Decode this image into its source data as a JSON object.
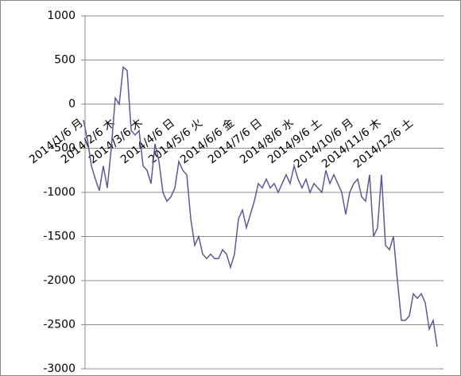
{
  "chart_data": {
    "type": "line",
    "color": "#5a5a96",
    "grid": true,
    "ylim": [
      -3000,
      1000
    ],
    "yticks": [
      1000,
      500,
      0,
      -500,
      -1000,
      -1500,
      -2000,
      -2500,
      -3000
    ],
    "categories": [
      "2014/1/6 月",
      null,
      null,
      null,
      null,
      null,
      null,
      null,
      "2014/2/6 木",
      null,
      null,
      null,
      null,
      null,
      null,
      "2014/3/6 木",
      null,
      null,
      null,
      null,
      null,
      null,
      null,
      "2014/4/6 日",
      null,
      null,
      null,
      null,
      null,
      null,
      "2014/5/6 火",
      null,
      null,
      null,
      null,
      null,
      null,
      null,
      "2014/6/6 金",
      null,
      null,
      null,
      null,
      null,
      null,
      "2014/7/6 日",
      null,
      null,
      null,
      null,
      null,
      null,
      null,
      "2014/8/6 水",
      null,
      null,
      null,
      null,
      null,
      null,
      "2014/9/6 土",
      null,
      null,
      null,
      null,
      null,
      null,
      null,
      "2014/10/6 月",
      null,
      null,
      null,
      null,
      null,
      null,
      "2014/11/6 木",
      null,
      null,
      null,
      null,
      null,
      null,
      null,
      "2014/12/6 土",
      null,
      null,
      null,
      null,
      null,
      null
    ],
    "values": [
      -180,
      -400,
      -700,
      -850,
      -980,
      -700,
      -950,
      -500,
      70,
      0,
      420,
      380,
      -300,
      -350,
      -300,
      -700,
      -750,
      -900,
      -450,
      -650,
      -1000,
      -1100,
      -1050,
      -950,
      -650,
      -750,
      -800,
      -1300,
      -1600,
      -1500,
      -1700,
      -1750,
      -1700,
      -1750,
      -1750,
      -1650,
      -1700,
      -1850,
      -1700,
      -1300,
      -1200,
      -1400,
      -1250,
      -1100,
      -900,
      -950,
      -850,
      -950,
      -900,
      -1000,
      -900,
      -800,
      -900,
      -700,
      -850,
      -950,
      -850,
      -1000,
      -900,
      -950,
      -1000,
      -750,
      -900,
      -800,
      -900,
      -1000,
      -1250,
      -1000,
      -900,
      -850,
      -1050,
      -1100,
      -800,
      -1500,
      -1400,
      -800,
      -1600,
      -1650,
      -1500,
      -2000,
      -2450,
      -2450,
      -2400,
      -2150,
      -2200,
      -2150,
      -2250,
      -2550,
      -2450,
      -2750
    ]
  }
}
